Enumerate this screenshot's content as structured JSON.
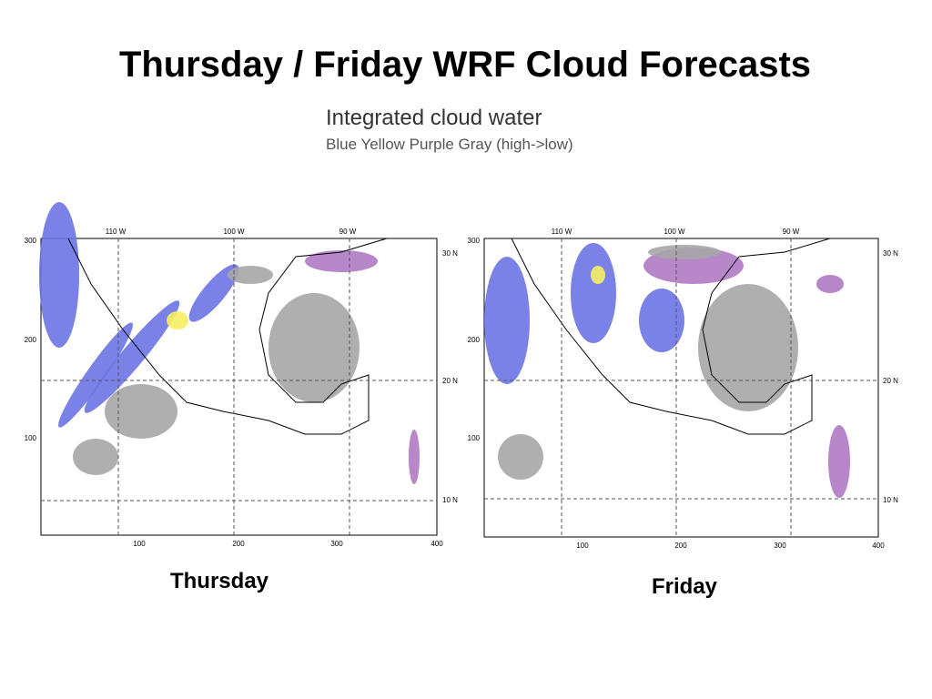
{
  "title": "Thursday / Friday WRF Cloud Forecasts",
  "subtitle": {
    "line1": "Integrated cloud water",
    "line2": "Blue Yellow Purple Gray (high->low)"
  },
  "maps": [
    {
      "caption": "Thursday",
      "top_labels": [
        "110 W",
        "100 W",
        "90 W"
      ],
      "right_labels": [
        "30 N",
        "20 N",
        "10 N"
      ],
      "left_labels": [
        "300",
        "200",
        "100"
      ],
      "bottom_labels": [
        "100",
        "200",
        "300",
        "400"
      ]
    },
    {
      "caption": "Friday",
      "top_labels": [
        "110 W",
        "100 W",
        "90 W"
      ],
      "right_labels": [
        "30 N",
        "20 N",
        "10 N"
      ],
      "left_labels": [
        "300",
        "200",
        "100"
      ],
      "bottom_labels": [
        "100",
        "200",
        "300",
        "400"
      ]
    }
  ]
}
